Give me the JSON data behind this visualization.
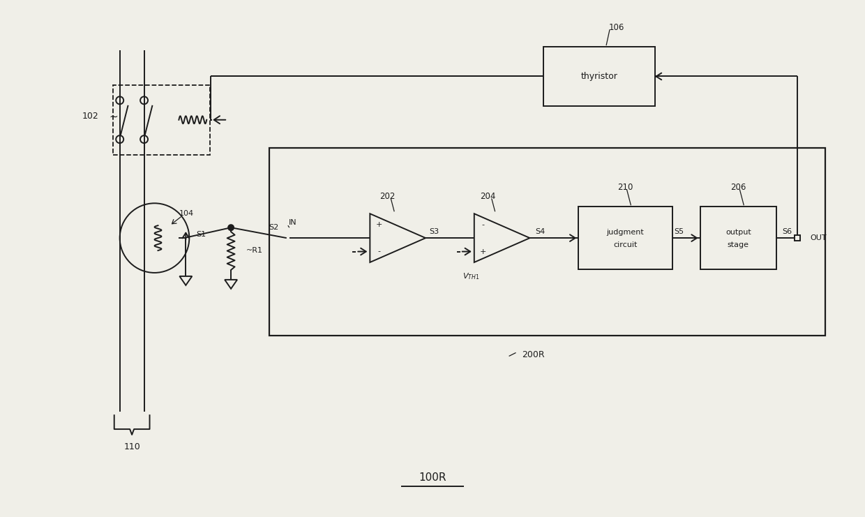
{
  "bg_color": "#f0efe8",
  "line_color": "#1c1c1c",
  "fig_width": 12.4,
  "fig_height": 7.41,
  "dpi": 100,
  "title": "100R",
  "label_200R": "200R",
  "label_102": "102",
  "label_106": "106",
  "label_104": "104",
  "label_110": "110",
  "label_202": "202",
  "label_204": "204",
  "label_210": "210",
  "label_206": "206",
  "label_S1": "S1",
  "label_S2": "S2",
  "label_S3": "S3",
  "label_S4": "S4",
  "label_S5": "S5",
  "label_S6": "S6",
  "label_IN": "IN",
  "label_OUT": "OUT",
  "label_R1": "~R1",
  "label_VTH1": "$V_{TH1}$",
  "label_thyristor": "thyristor",
  "label_judgment1": "judgment",
  "label_judgment2": "circuit",
  "label_output1": "output",
  "label_output2": "stage"
}
